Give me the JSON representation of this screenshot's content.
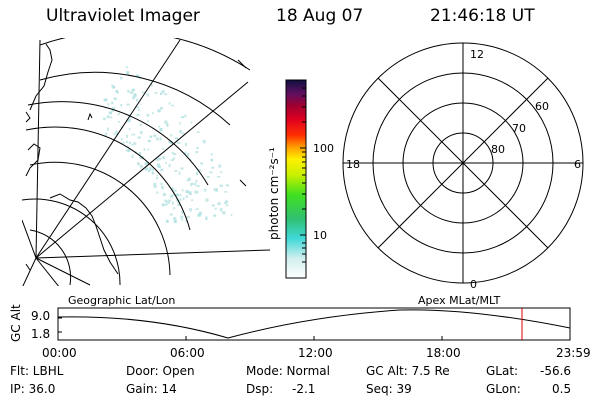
{
  "header": {
    "title": "Ultraviolet Imager",
    "date": "18 Aug 07",
    "time": "21:46:18 UT"
  },
  "colorbar": {
    "unit_label": "photon cm⁻²s⁻¹",
    "tick_100": "100",
    "tick_10": "10"
  },
  "polar": {
    "mlt_top": "12",
    "mlt_bottom": "0",
    "mlt_left": "18",
    "mlt_right": "6",
    "lat_60": "60",
    "lat_70": "70",
    "lat_80": "80"
  },
  "maps": {
    "left_label": "Geographic Lat/Lon",
    "right_label": "Apex MLat/MLT"
  },
  "altitude_plot": {
    "ylabel": "GC Alt",
    "y_max": "9.0",
    "y_min": "1.8",
    "x_ticks": [
      "00:00",
      "06:00",
      "12:00",
      "18:00",
      "23:59"
    ]
  },
  "info": {
    "flt": "Flt: LBHL",
    "ip": "IP: 36.0",
    "door": "Door: Open",
    "gain": "Gain: 14",
    "mode": "Mode: Normal",
    "dsp_label": "Dsp:",
    "dsp_value": "-2.1",
    "gcalt": "GC Alt: 7.5 Re",
    "seq": "Seq: 39",
    "glat_label": "GLat:",
    "glat_value": "-56.6",
    "glon_label": "GLon:",
    "glon_value": "0.5"
  },
  "colors": {
    "marker": "#e00000",
    "aurora": "#c8e8e8"
  }
}
